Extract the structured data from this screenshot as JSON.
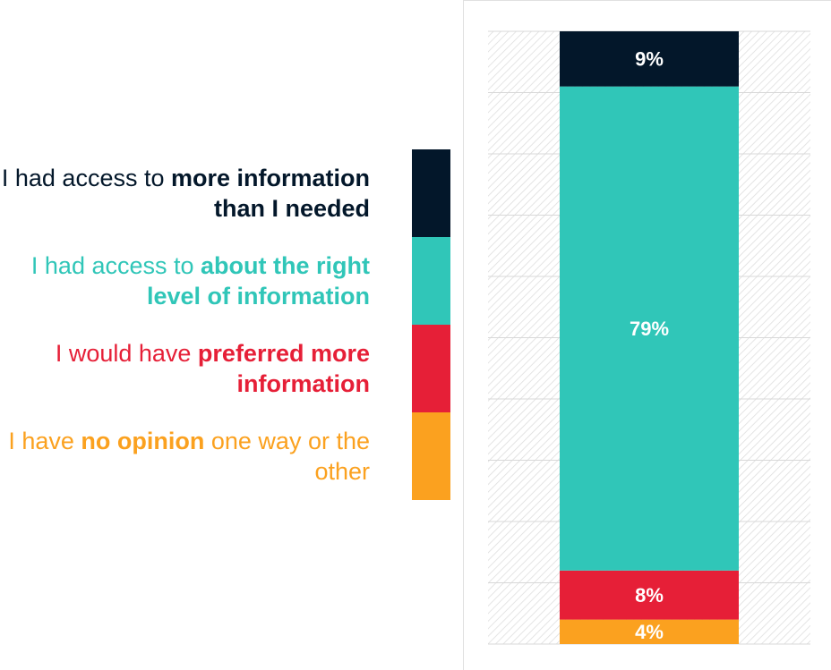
{
  "chart_data": {
    "type": "stacked_bar",
    "series": [
      {
        "name": "I had access to more information than I needed",
        "emphasis": "more information than I needed",
        "color": "#03172a",
        "values": [
          9
        ],
        "value_labels": [
          "9%"
        ]
      },
      {
        "name": "I had access to about the right level of information",
        "emphasis": "about the right level of information",
        "color": "#30c6b8",
        "values": [
          79
        ],
        "value_labels": [
          "79%"
        ]
      },
      {
        "name": "I would have preferred more information",
        "emphasis": "preferred more information",
        "color": "#e61f37",
        "values": [
          8
        ],
        "value_labels": [
          "8%"
        ]
      },
      {
        "name": "I have no opinion one way or the other",
        "emphasis": "no opinion",
        "color": "#fba11f",
        "values": [
          4
        ],
        "value_labels": [
          "4%"
        ]
      }
    ],
    "ylim": [
      0,
      100
    ],
    "yticks": [
      0,
      10,
      20,
      30,
      40,
      50,
      60,
      70,
      80,
      90,
      100
    ],
    "grid": true
  }
}
